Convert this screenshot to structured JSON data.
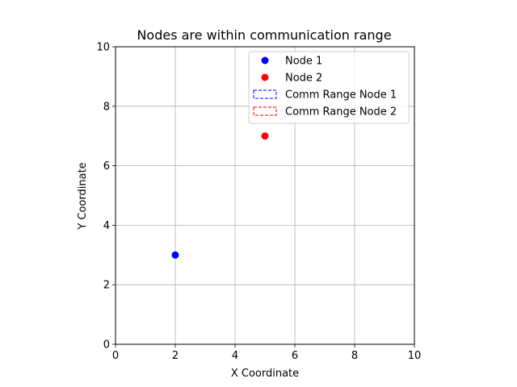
{
  "chart_data": {
    "type": "scatter",
    "title": "Nodes are within communication range",
    "xlabel": "X Coordinate",
    "ylabel": "Y Coordinate",
    "xlim": [
      0,
      10
    ],
    "ylim": [
      0,
      10
    ],
    "xticks": [
      0,
      2,
      4,
      6,
      8,
      10
    ],
    "yticks": [
      0,
      2,
      4,
      6,
      8,
      10
    ],
    "grid": true,
    "legend_position": "top-right",
    "series": [
      {
        "name": "Node 1",
        "kind": "point",
        "x": [
          2
        ],
        "y": [
          3
        ],
        "color": "#0000ff"
      },
      {
        "name": "Node 2",
        "kind": "point",
        "x": [
          5
        ],
        "y": [
          7
        ],
        "color": "#ff0000"
      },
      {
        "name": "Comm Range Node 1",
        "kind": "range",
        "color": "#0000ff",
        "linestyle": "dashed"
      },
      {
        "name": "Comm Range Node 2",
        "kind": "range",
        "color": "#ff0000",
        "linestyle": "dashed"
      }
    ]
  }
}
